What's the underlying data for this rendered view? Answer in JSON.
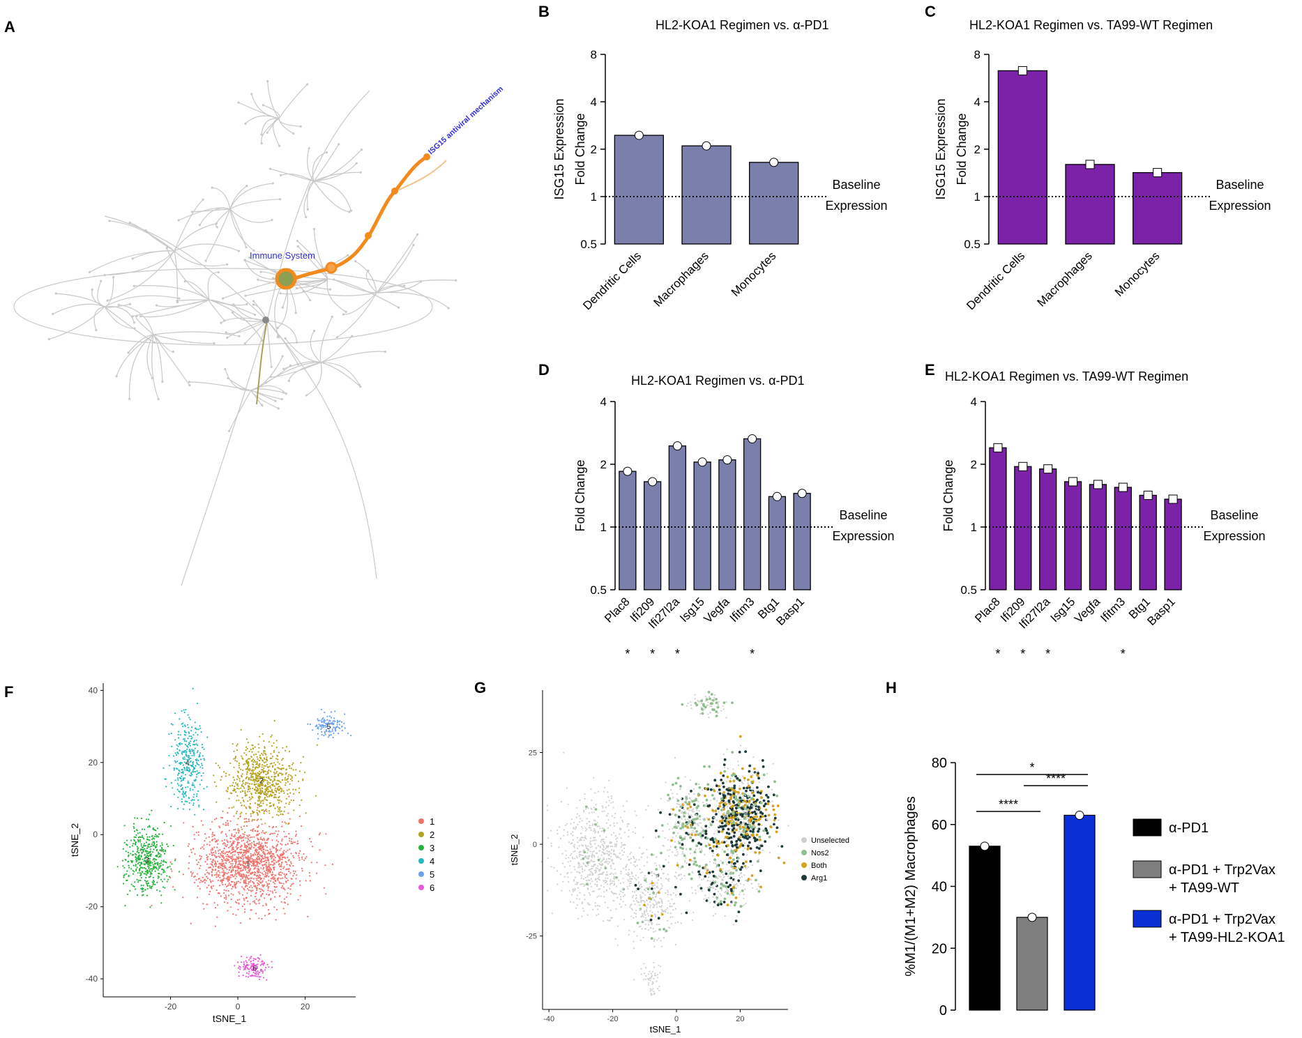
{
  "colors": {
    "periwinkle": "#7b7fac",
    "purple": "#7b22a8",
    "axis": "#000000",
    "tree": "#c9c9c9",
    "highlight": "#f28a1e",
    "label_blue": "#2f2fd6",
    "clusters": [
      "#f0736b",
      "#b5a21f",
      "#27b23c",
      "#27b9c0",
      "#6da1ef",
      "#e95ad9"
    ],
    "expr": [
      "#cfcfcf",
      "#8fbf8f",
      "#d4a21f",
      "#1d3a3a"
    ],
    "h_bars": [
      "#000000",
      "#7f7f7f",
      "#0a2fd6"
    ]
  },
  "panel_letters": [
    "A",
    "B",
    "C",
    "D",
    "E",
    "F",
    "G",
    "H"
  ],
  "panel_a": {
    "labels": {
      "immune": "Immune System",
      "isg": "ISG15 antiviral mechanism"
    }
  },
  "chart_data": [
    {
      "id": "B",
      "type": "bar",
      "title": "HL2-KOA1 Regimen vs. α-PD1",
      "ylabel_lines": [
        "ISG15 Expression",
        "Fold Change"
      ],
      "yscale": "log2",
      "ylim": [
        0.5,
        8
      ],
      "yticks": [
        "0.5",
        "1",
        "2",
        "4",
        "8"
      ],
      "categories": [
        "Dendritic Cells",
        "Macrophages",
        "Monocytes"
      ],
      "values": [
        2.45,
        2.1,
        1.65
      ],
      "marker": "circle",
      "baseline": 1,
      "baseline_label": [
        "Baseline",
        "Expression"
      ],
      "stars": []
    },
    {
      "id": "C",
      "type": "bar",
      "title": "HL2-KOA1 Regimen vs. TA99-WT Regimen",
      "ylabel_lines": [
        "ISG15 Expression",
        "Fold Change"
      ],
      "yscale": "log2",
      "ylim": [
        0.5,
        8
      ],
      "yticks": [
        "0.5",
        "1",
        "2",
        "4",
        "8"
      ],
      "categories": [
        "Dendritic Cells",
        "Macrophages",
        "Monocytes"
      ],
      "values": [
        6.3,
        1.6,
        1.42
      ],
      "marker": "square",
      "baseline": 1,
      "baseline_label": [
        "Baseline",
        "Expression"
      ],
      "stars": []
    },
    {
      "id": "D",
      "type": "bar",
      "title": "HL2-KOA1 Regimen vs. α-PD1",
      "ylabel_lines": [
        "Fold Change"
      ],
      "yscale": "log2",
      "ylim": [
        0.5,
        4
      ],
      "yticks": [
        "0.5",
        "1",
        "2",
        "4"
      ],
      "categories": [
        "Plac8",
        "Ifi209",
        "Ifi27l2a",
        "Isg15",
        "Vegfa",
        "Ifitm3",
        "Btg1",
        "Basp1"
      ],
      "values": [
        1.85,
        1.65,
        2.45,
        2.05,
        2.1,
        2.65,
        1.4,
        1.45
      ],
      "marker": "circle",
      "baseline": 1,
      "baseline_label": [
        "Baseline",
        "Expression"
      ],
      "stars": [
        "*",
        "*",
        "*",
        "",
        "",
        "*",
        "",
        ""
      ]
    },
    {
      "id": "E",
      "type": "bar",
      "title": "HL2-KOA1 Regimen vs. TA99-WT Regimen",
      "ylabel_lines": [
        "Fold Change"
      ],
      "yscale": "log2",
      "ylim": [
        0.5,
        4
      ],
      "yticks": [
        "0.5",
        "1",
        "2",
        "4"
      ],
      "categories": [
        "Plac8",
        "Ifi209",
        "Ifi27l2a",
        "Isg15",
        "Vegfa",
        "Ifitm3",
        "Btg1",
        "Basp1"
      ],
      "values": [
        2.4,
        1.95,
        1.9,
        1.65,
        1.6,
        1.55,
        1.42,
        1.36
      ],
      "marker": "square",
      "baseline": 1,
      "baseline_label": [
        "Baseline",
        "Expression"
      ],
      "stars": [
        "*",
        "*",
        "*",
        "",
        "",
        "*",
        "",
        ""
      ]
    },
    {
      "id": "F",
      "type": "scatter",
      "xlabel": "tSNE_1",
      "ylabel": "tSNE_2",
      "xlim": [
        -40,
        35
      ],
      "ylim": [
        -45,
        42
      ],
      "xticks": [
        "-20",
        "0",
        "20"
      ],
      "yticks": [
        "-40",
        "-20",
        "0",
        "20",
        "40"
      ],
      "legend": [
        "1",
        "2",
        "3",
        "4",
        "5",
        "6"
      ],
      "clusters": [
        {
          "label": "1",
          "cx": 3,
          "cy": -8,
          "sx": 10,
          "sy": 7,
          "n": 1400
        },
        {
          "label": "2",
          "cx": 7,
          "cy": 15,
          "sx": 6,
          "sy": 6,
          "n": 700
        },
        {
          "label": "3",
          "cx": -27,
          "cy": -7,
          "sx": 4,
          "sy": 6,
          "n": 450
        },
        {
          "label": "4",
          "cx": -15,
          "cy": 20,
          "sx": 3,
          "sy": 8,
          "n": 330
        },
        {
          "label": "5",
          "cx": 27,
          "cy": 30,
          "sx": 3,
          "sy": 2,
          "n": 120
        },
        {
          "label": "6",
          "cx": 5,
          "cy": -37,
          "sx": 3,
          "sy": 2,
          "n": 130
        }
      ]
    },
    {
      "id": "G",
      "type": "scatter",
      "xlabel": "tSNE_1",
      "ylabel": "tSNE_2",
      "xlim": [
        -42,
        35
      ],
      "ylim": [
        -45,
        42
      ],
      "xticks": [
        "-40",
        "-20",
        "0",
        "20"
      ],
      "yticks": [
        "-25",
        "0",
        "25"
      ],
      "legend": [
        "Unselected",
        "Nos2",
        "Both",
        "Arg1"
      ]
    },
    {
      "id": "H",
      "type": "bar",
      "ylabel": "%M1/(M1+M2) Macrophages",
      "ylim": [
        0,
        80
      ],
      "yticks": [
        "0",
        "20",
        "40",
        "60",
        "80"
      ],
      "values": [
        53,
        30,
        63
      ],
      "legend": [
        [
          "α-PD1"
        ],
        [
          "α-PD1 + Trp2Vax",
          "+ TA99-WT"
        ],
        [
          "α-PD1 + Trp2Vax",
          "+ TA99-HL2-KOA1"
        ]
      ],
      "comparisons": [
        {
          "from": 0,
          "to": 1,
          "label": "****"
        },
        {
          "from": 1,
          "to": 2,
          "label": "****"
        },
        {
          "from": 0,
          "to": 2,
          "label": "*"
        }
      ]
    }
  ]
}
